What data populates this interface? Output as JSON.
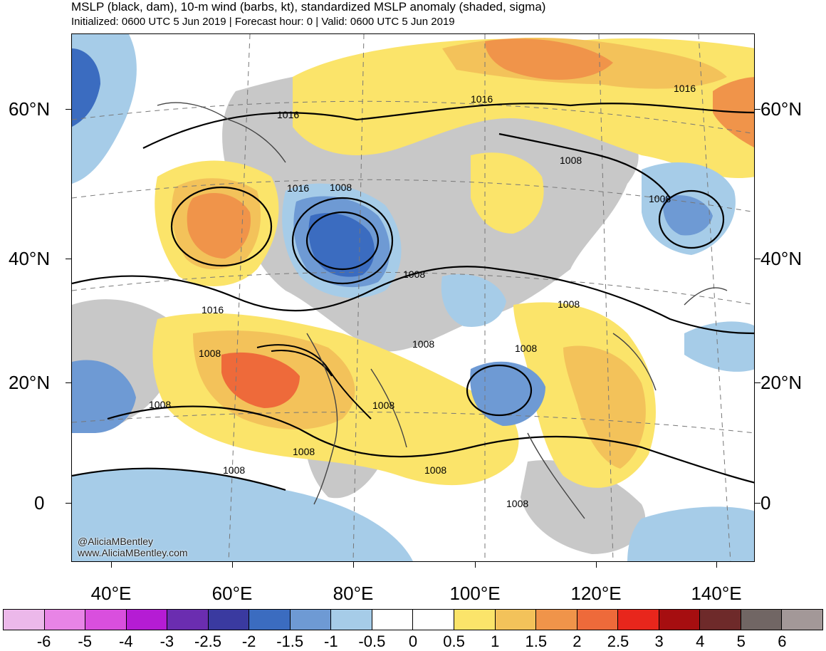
{
  "header": {
    "title": "MSLP (black, dam), 10-m wind (barbs, kt), standardized MSLP anomaly (shaded, sigma)",
    "subtitle": "Initialized: 0600 UTC 5 Jun 2019 | Forecast hour: 0 | Valid: 0600 UTC 5 Jun 2019"
  },
  "map": {
    "lat_labels": [
      "60°N",
      "40°N",
      "20°N",
      "0"
    ],
    "lon_labels": [
      "40°E",
      "60°E",
      "80°E",
      "100°E",
      "120°E",
      "140°E"
    ],
    "isobar_labels": [
      "1016",
      "1016",
      "1016",
      "1016",
      "1008",
      "1008",
      "1008",
      "1008",
      "1008",
      "1008",
      "1008",
      "1008",
      "1008",
      "1008",
      "1008",
      "1008",
      "1008",
      "1016",
      "1008"
    ],
    "watermark": {
      "handle": "@AliciaMBentley",
      "url": "www.AliciaMBentley.com"
    }
  },
  "colorbar": {
    "colors": [
      "#ecb8ea",
      "#e884e6",
      "#d94fde",
      "#b51cd4",
      "#6b2db0",
      "#3a3aa0",
      "#3b6cc0",
      "#6e9ad4",
      "#a6cce8",
      "#ffffff",
      "#ffffff",
      "#fbe46a",
      "#f3c25a",
      "#f0944a",
      "#ee6a3a",
      "#e8261c",
      "#a60e10",
      "#6e2a2a",
      "#716664",
      "#a39898"
    ],
    "labels": [
      "-6",
      "-5",
      "-4",
      "-3",
      "-2.5",
      "-2",
      "-1.5",
      "-1",
      "-0.5",
      "0",
      "0.5",
      "1",
      "1.5",
      "2",
      "2.5",
      "3",
      "4",
      "5",
      "6"
    ]
  }
}
